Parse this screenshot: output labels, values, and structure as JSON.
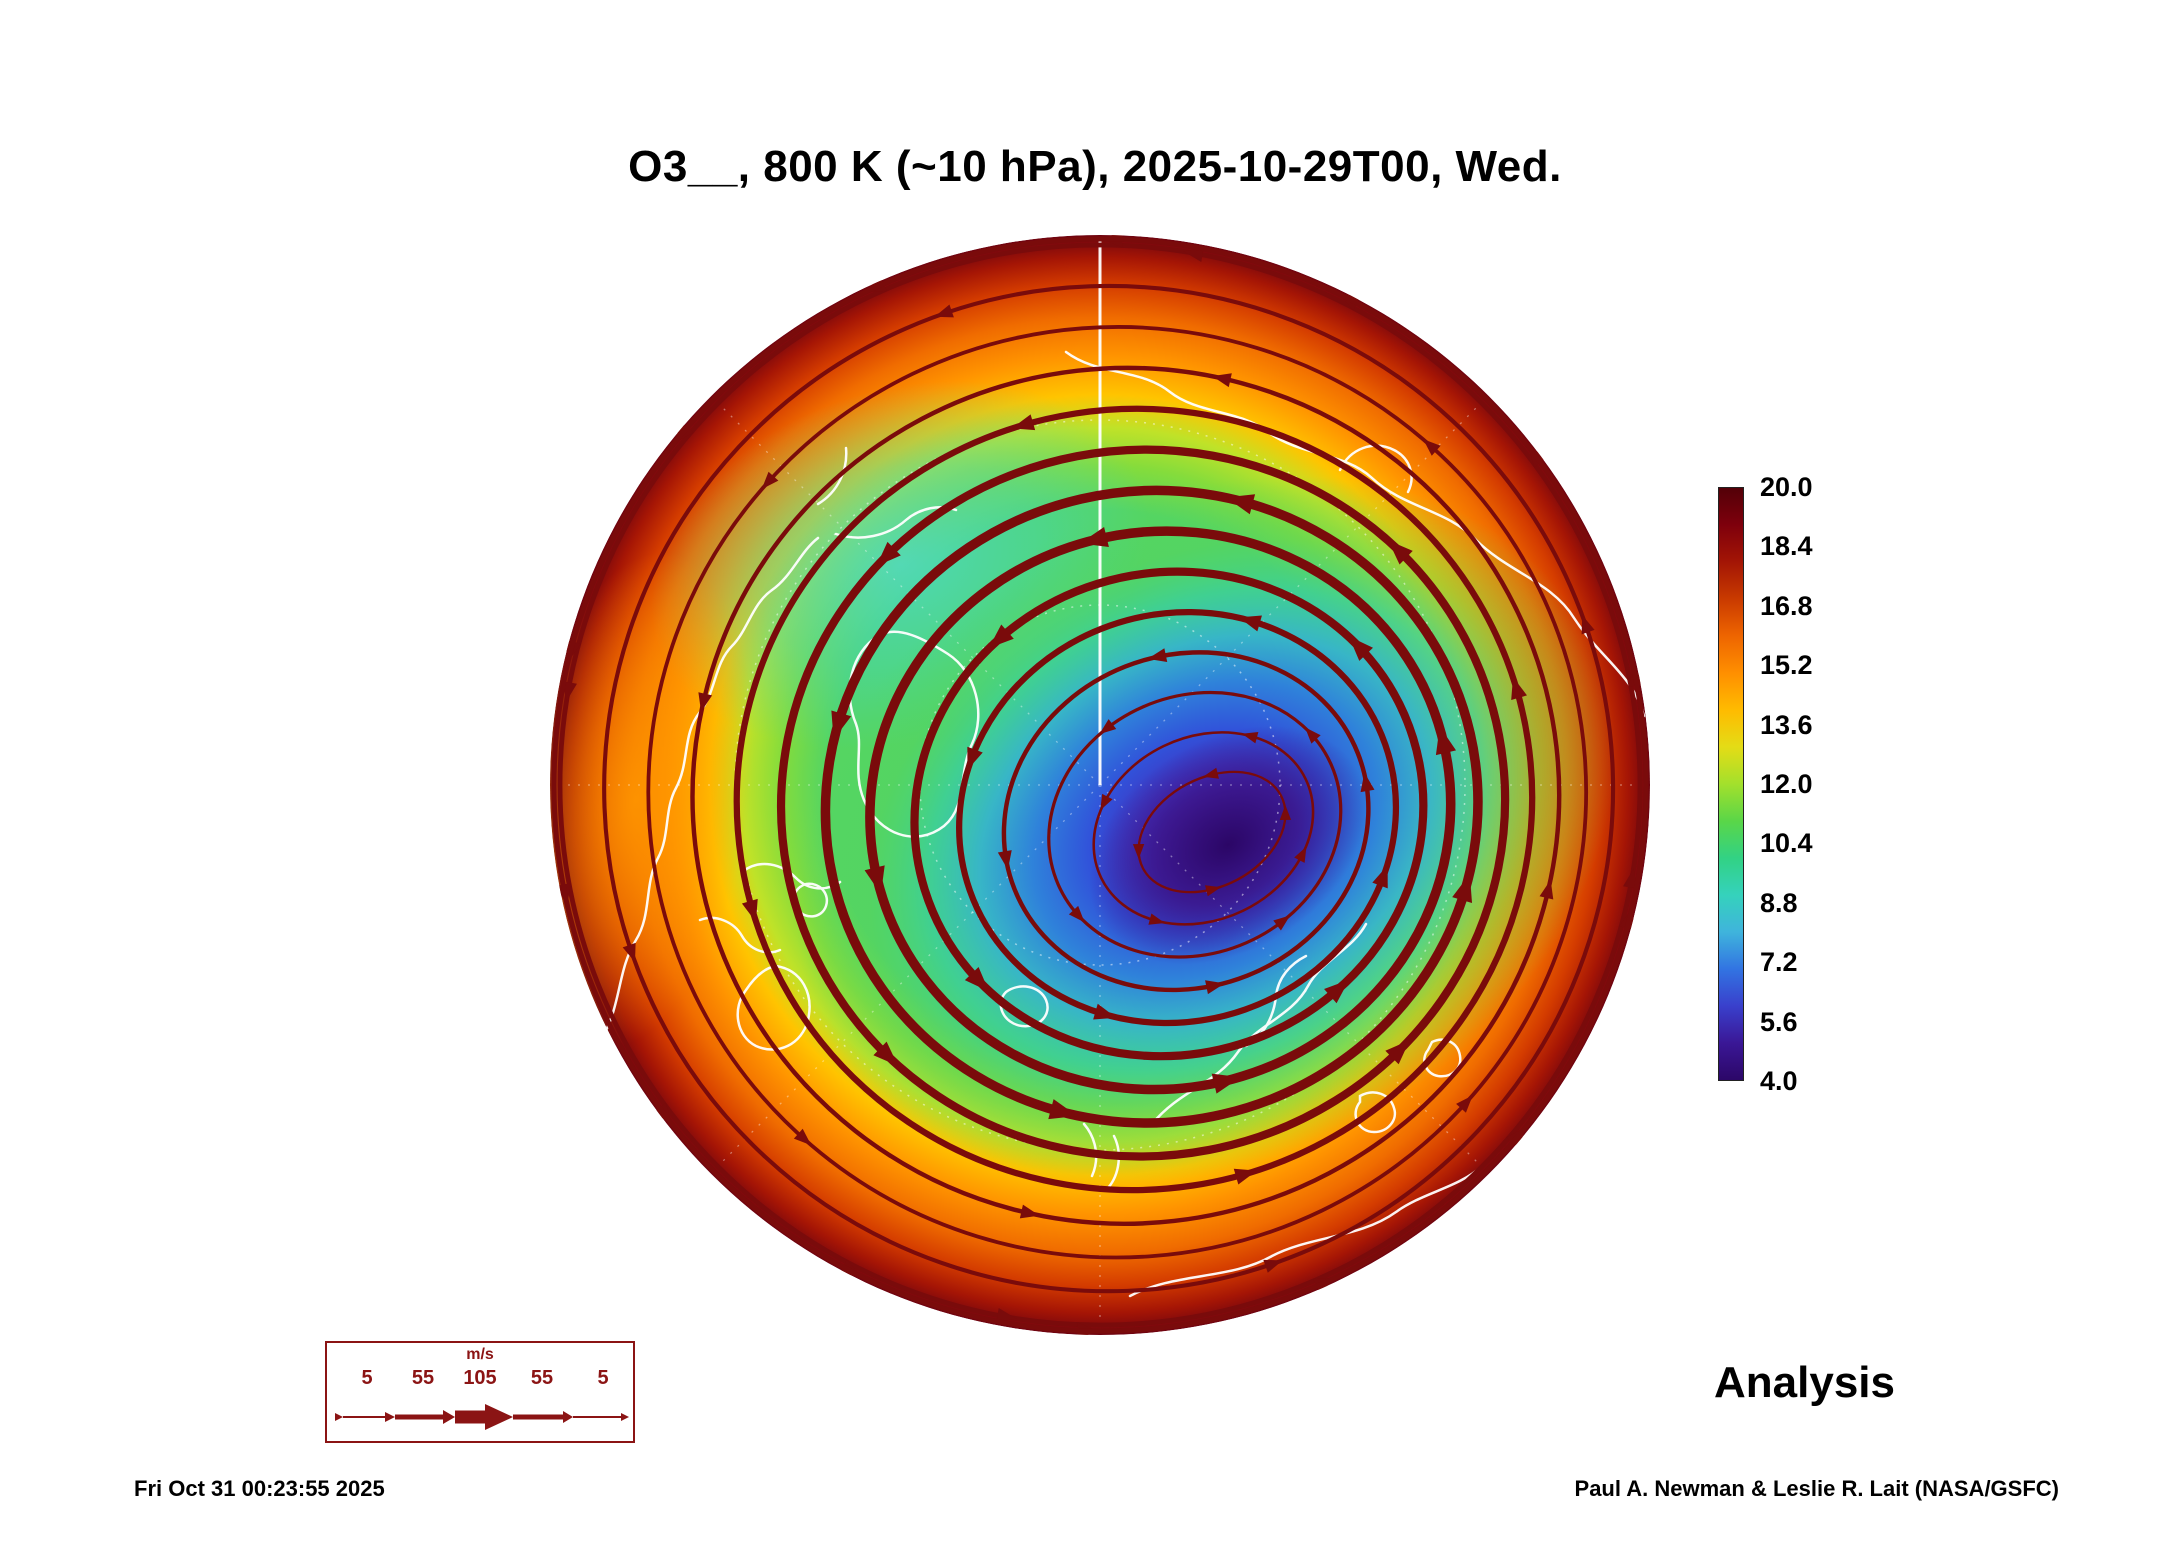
{
  "title": "O3__, 800 K (~10 hPa), 2025-10-29T00, Wed.",
  "annotation": "Analysis",
  "footer": {
    "timestamp": "Fri Oct 31 00:23:55 2025",
    "credit": "Paul A. Newman & Leslie R. Lait (NASA/GSFC)"
  },
  "wind_legend": {
    "unit": "m/s",
    "values": [
      "5",
      "55",
      "105",
      "55",
      "5"
    ]
  },
  "colorbar": {
    "ticks": [
      "20.0",
      "18.4",
      "16.8",
      "15.2",
      "13.6",
      "12.0",
      "10.4",
      "8.8",
      "7.2",
      "5.6",
      "4.0"
    ],
    "colors_top_to_bottom": [
      "#530008",
      "#7e000c",
      "#a31505",
      "#c93a00",
      "#ee6500",
      "#ff8f00",
      "#ffbb00",
      "#e4dc16",
      "#a3e02c",
      "#5ad648",
      "#32d284",
      "#35d2bc",
      "#3fb4dc",
      "#3274e2",
      "#3940cc",
      "#3a1796",
      "#2c0768"
    ]
  },
  "map_style": {
    "streamline_color": "#7a0b0b",
    "coastline_color": "#ffffff",
    "rim_color": "#6f0410",
    "vortex_core_color": "#2b0666",
    "background": "#ffffff"
  },
  "chart_data": {
    "type": "heatmap",
    "title": "O3__, 800 K (~10 hPa), 2025-10-29T00, Wed.",
    "field": "Ozone mixing ratio (O3)",
    "level": "800 K potential temperature surface (~10 hPa)",
    "valid_time": "2025-10-29T00, Wednesday",
    "projection": "Northern Hemisphere polar stereographic (circular map, pole near center)",
    "colorbar": {
      "min": 4.0,
      "max": 20.0,
      "tick_step": 1.6,
      "ticks": [
        20.0,
        18.4,
        16.8,
        15.2,
        13.6,
        12.0,
        10.4,
        8.8,
        7.2,
        5.6,
        4.0
      ],
      "orientation": "vertical, right side, max at top"
    },
    "overlays": [
      "dark-red wind streamlines with arrowheads, line thickness proportional to wind speed (5 to 105 m/s)",
      "white coastlines",
      "white dotted latitude/longitude graticule with solid white meridian line from pole to top edge"
    ],
    "features": [
      {
        "name": "polar vortex low-ozone core (purple)",
        "approx_values": "4-7",
        "location": "offset from pole toward the Siberian sector (right of and slightly below map center)"
      },
      {
        "name": "blue/teal band",
        "approx_values": "7-10",
        "location": "annulus around vortex core, elongated toward lower-left"
      },
      {
        "name": "green surf zone",
        "approx_values": "10-13",
        "location": "broad annulus over most of the hemisphere"
      },
      {
        "name": "high-ozone collar (orange to dark red)",
        "approx_values": "14-20",
        "location": "outer rim of the map (lower latitudes), widest on the left side"
      }
    ],
    "streamline_pattern": "closed clockwise-nested loops circling the displaced vortex center; thickest (fastest wind) loops at mid radius; loops become circular and hug the map rim outward",
    "wind_speed_legend_ms": [
      5,
      55,
      105,
      55,
      5
    ],
    "analysis_label": "Analysis",
    "credit": "Paul A. Newman & Leslie R. Lait (NASA/GSFC)",
    "plot_generated": "Fri Oct 31 00:23:55 2025"
  }
}
